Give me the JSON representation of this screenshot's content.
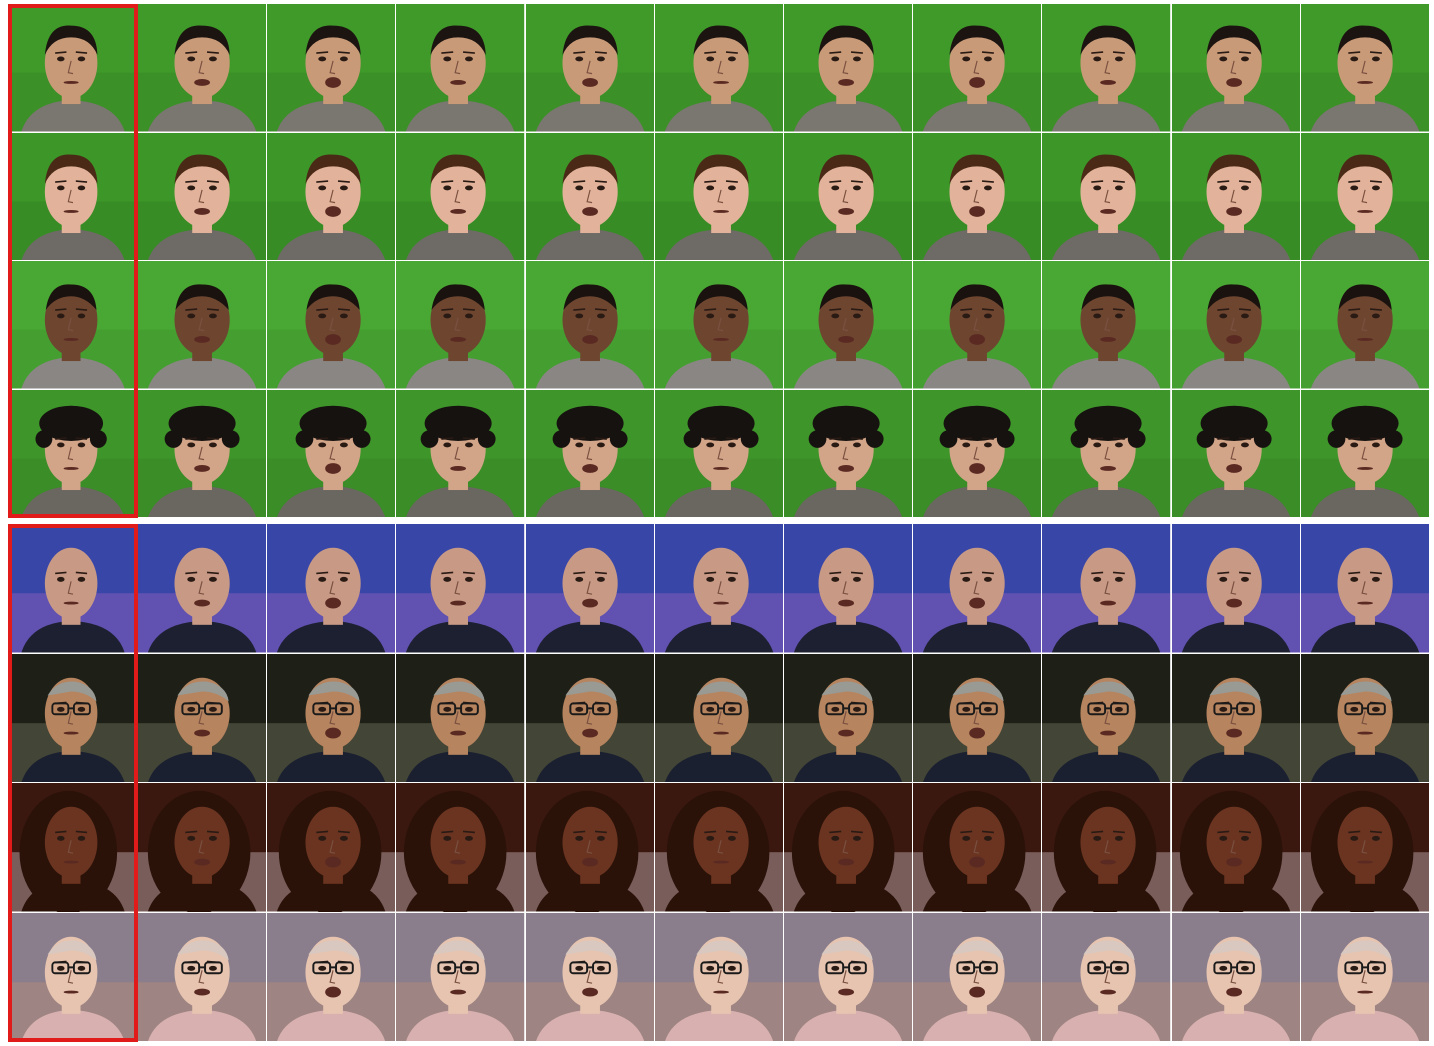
{
  "colors": {
    "reference_frame": "#e11a1a",
    "greenscreen": "#3f9a2a",
    "background": "#ffffff"
  },
  "sections": [
    {
      "id": "top",
      "columns": 11,
      "rows": [
        {
          "bg": "#3f9a2a",
          "bg2": "#357f22",
          "skin": "#c89a78",
          "hair": "#1c1410",
          "shirt": "#7a7670",
          "hair_style": "short"
        },
        {
          "bg": "#3c9628",
          "bg2": "#327c20",
          "skin": "#e2b39a",
          "hair": "#4a2a16",
          "shirt": "#6e6a66",
          "hair_style": "short"
        },
        {
          "bg": "#49a834",
          "bg2": "#3c8f2a",
          "skin": "#6e4630",
          "hair": "#1a120e",
          "shirt": "#8a8684",
          "hair_style": "bun"
        },
        {
          "bg": "#3e952a",
          "bg2": "#347d22",
          "skin": "#d2a488",
          "hair": "#161210",
          "shirt": "#6a6660",
          "hair_style": "curly"
        }
      ]
    },
    {
      "id": "bottom",
      "columns": 11,
      "rows": [
        {
          "bg": "#3846a8",
          "bg2": "#b068c0",
          "skin": "#c89a86",
          "hair": "#c89a86",
          "shirt": "#1c2030",
          "hair_style": "bald"
        },
        {
          "bg": "#1e2018",
          "bg2": "#8a8c70",
          "skin": "#b6845e",
          "hair": "#9a9a94",
          "shirt": "#1a2030",
          "hair_style": "glasses"
        },
        {
          "bg": "#3a1810",
          "bg2": "#f0e0e8",
          "skin": "#6a3420",
          "hair": "#2a1208",
          "shirt": "#2a1208",
          "hair_style": "long"
        },
        {
          "bg": "#8a7e8c",
          "bg2": "#c49070",
          "skin": "#e6c4b0",
          "hair": "#d8c8c0",
          "shirt": "#d8b0b0",
          "hair_style": "glasses"
        }
      ]
    }
  ]
}
